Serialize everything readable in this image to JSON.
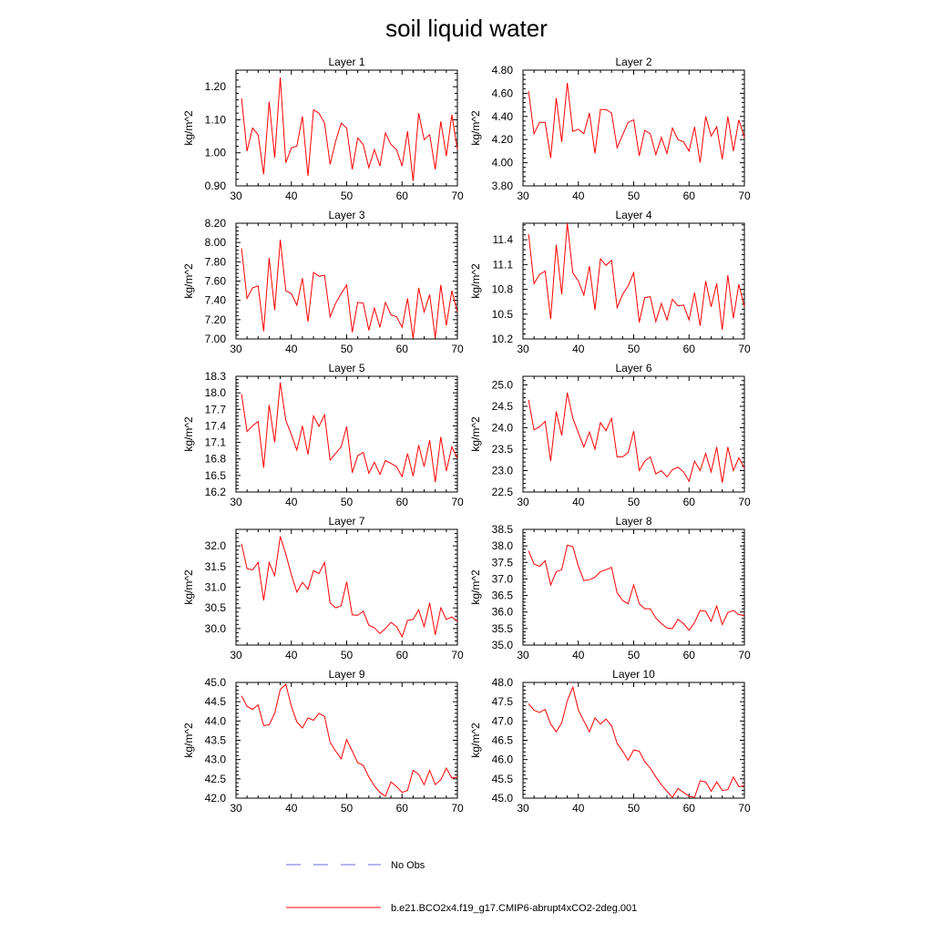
{
  "title": "soil liquid water",
  "legend": {
    "obs_label": "No Obs",
    "model_label": "b.e21.BCO2x4.f19_g17.CMIP6-abrupt4xCO2-2deg.001",
    "obs_color": "#6a6ad8",
    "model_color": "#ff0000"
  },
  "chart_data": [
    {
      "type": "line",
      "title": "Layer 1",
      "ylabel": "kg/m^2",
      "xlim": [
        30,
        70
      ],
      "ylim": [
        0.9,
        1.25
      ],
      "xticks": [
        "30",
        "40",
        "50",
        "60",
        "70"
      ],
      "yticks": [
        "0.90",
        "1.00",
        "1.10",
        "1.20"
      ],
      "x": [
        31,
        32,
        33,
        34,
        35,
        36,
        37,
        38,
        39,
        40,
        41,
        42,
        43,
        44,
        45,
        46,
        47,
        48,
        49,
        50,
        51,
        52,
        53,
        54,
        55,
        56,
        57,
        58,
        59,
        60,
        61,
        62,
        63,
        64,
        65,
        66,
        67,
        68,
        69,
        70
      ],
      "values": [
        1.165,
        1.005,
        1.075,
        1.055,
        0.935,
        1.155,
        0.985,
        1.228,
        0.97,
        1.015,
        1.02,
        1.11,
        0.93,
        1.13,
        1.12,
        1.09,
        0.965,
        1.035,
        1.09,
        1.075,
        0.95,
        1.045,
        1.025,
        0.955,
        1.01,
        0.96,
        1.06,
        1.025,
        1.01,
        0.96,
        1.065,
        0.915,
        1.12,
        1.04,
        1.055,
        0.95,
        1.095,
        0.99,
        1.115,
        1.01
      ]
    },
    {
      "type": "line",
      "title": "Layer 2",
      "ylabel": "kg/m^2",
      "xlim": [
        30,
        70
      ],
      "ylim": [
        3.8,
        4.8
      ],
      "xticks": [
        "30",
        "40",
        "50",
        "60",
        "70"
      ],
      "yticks": [
        "3.80",
        "4.00",
        "4.20",
        "4.40",
        "4.60",
        "4.80"
      ],
      "x": [
        31,
        32,
        33,
        34,
        35,
        36,
        37,
        38,
        39,
        40,
        41,
        42,
        43,
        44,
        45,
        46,
        47,
        48,
        49,
        50,
        51,
        52,
        53,
        54,
        55,
        56,
        57,
        58,
        59,
        60,
        61,
        62,
        63,
        64,
        65,
        66,
        67,
        68,
        69,
        70
      ],
      "values": [
        4.62,
        4.25,
        4.35,
        4.35,
        4.04,
        4.56,
        4.18,
        4.69,
        4.27,
        4.29,
        4.25,
        4.43,
        4.08,
        4.46,
        4.46,
        4.43,
        4.13,
        4.24,
        4.35,
        4.37,
        4.06,
        4.28,
        4.25,
        4.07,
        4.22,
        4.08,
        4.3,
        4.2,
        4.18,
        4.1,
        4.31,
        4.0,
        4.4,
        4.23,
        4.31,
        4.03,
        4.4,
        4.1,
        4.37,
        4.22
      ]
    },
    {
      "type": "line",
      "title": "Layer 3",
      "ylabel": "kg/m^2",
      "xlim": [
        30,
        70
      ],
      "ylim": [
        7.0,
        8.2
      ],
      "xticks": [
        "30",
        "40",
        "50",
        "60",
        "70"
      ],
      "yticks": [
        "7.00",
        "7.20",
        "7.40",
        "7.60",
        "7.80",
        "8.00",
        "8.20"
      ],
      "x": [
        31,
        32,
        33,
        34,
        35,
        36,
        37,
        38,
        39,
        40,
        41,
        42,
        43,
        44,
        45,
        46,
        47,
        48,
        49,
        50,
        51,
        52,
        53,
        54,
        55,
        56,
        57,
        58,
        59,
        60,
        61,
        62,
        63,
        64,
        65,
        66,
        67,
        68,
        69,
        70
      ],
      "values": [
        7.94,
        7.42,
        7.53,
        7.55,
        7.08,
        7.84,
        7.3,
        8.03,
        7.5,
        7.47,
        7.35,
        7.63,
        7.18,
        7.69,
        7.65,
        7.66,
        7.23,
        7.37,
        7.47,
        7.56,
        7.07,
        7.38,
        7.37,
        7.09,
        7.32,
        7.12,
        7.38,
        7.25,
        7.23,
        7.12,
        7.42,
        7.01,
        7.53,
        7.28,
        7.46,
        7.01,
        7.56,
        7.14,
        7.5,
        7.28
      ]
    },
    {
      "type": "line",
      "title": "Layer 4",
      "ylabel": "kg/m^2",
      "xlim": [
        30,
        70
      ],
      "ylim": [
        10.2,
        11.6
      ],
      "xticks": [
        "30",
        "40",
        "50",
        "60",
        "70"
      ],
      "yticks": [
        "10.2",
        "10.5",
        "10.8",
        "11.1",
        "11.4"
      ],
      "x": [
        31,
        32,
        33,
        34,
        35,
        36,
        37,
        38,
        39,
        40,
        41,
        42,
        43,
        44,
        45,
        46,
        47,
        48,
        49,
        50,
        51,
        52,
        53,
        54,
        55,
        56,
        57,
        58,
        59,
        60,
        61,
        62,
        63,
        64,
        65,
        66,
        67,
        68,
        69,
        70
      ],
      "values": [
        11.47,
        10.87,
        10.98,
        11.02,
        10.44,
        11.34,
        10.74,
        11.6,
        11.0,
        10.9,
        10.73,
        11.08,
        10.55,
        11.17,
        11.09,
        11.15,
        10.58,
        10.74,
        10.84,
        11.0,
        10.4,
        10.7,
        10.71,
        10.41,
        10.63,
        10.43,
        10.68,
        10.6,
        10.61,
        10.43,
        10.76,
        10.36,
        10.9,
        10.59,
        10.87,
        10.31,
        10.97,
        10.45,
        10.86,
        10.59
      ]
    },
    {
      "type": "line",
      "title": "Layer 5",
      "ylabel": "kg/m^2",
      "xlim": [
        30,
        70
      ],
      "ylim": [
        16.2,
        18.3
      ],
      "xticks": [
        "30",
        "40",
        "50",
        "60",
        "70"
      ],
      "yticks": [
        "16.2",
        "16.5",
        "16.8",
        "17.1",
        "17.4",
        "17.7",
        "18.0",
        "18.3"
      ],
      "x": [
        31,
        32,
        33,
        34,
        35,
        36,
        37,
        38,
        39,
        40,
        41,
        42,
        43,
        44,
        45,
        46,
        47,
        48,
        49,
        50,
        51,
        52,
        53,
        54,
        55,
        56,
        57,
        58,
        59,
        60,
        61,
        62,
        63,
        64,
        65,
        66,
        67,
        68,
        69,
        70
      ],
      "values": [
        17.98,
        17.3,
        17.4,
        17.48,
        16.64,
        17.78,
        17.1,
        18.19,
        17.5,
        17.24,
        16.96,
        17.4,
        16.88,
        17.58,
        17.39,
        17.6,
        16.78,
        16.9,
        17.02,
        17.39,
        16.55,
        16.86,
        16.92,
        16.54,
        16.74,
        16.52,
        16.77,
        16.72,
        16.66,
        16.48,
        16.9,
        16.49,
        17.05,
        16.66,
        17.14,
        16.38,
        17.2,
        16.58,
        17.02,
        16.81
      ]
    },
    {
      "type": "line",
      "title": "Layer 6",
      "ylabel": "kg/m^2",
      "xlim": [
        30,
        70
      ],
      "ylim": [
        22.5,
        25.2
      ],
      "xticks": [
        "30",
        "40",
        "50",
        "60",
        "70"
      ],
      "yticks": [
        "22.5",
        "23.0",
        "23.5",
        "24.0",
        "24.5",
        "25.0"
      ],
      "x": [
        31,
        32,
        33,
        34,
        35,
        36,
        37,
        38,
        39,
        40,
        41,
        42,
        43,
        44,
        45,
        46,
        47,
        48,
        49,
        50,
        51,
        52,
        53,
        54,
        55,
        56,
        57,
        58,
        59,
        60,
        61,
        62,
        63,
        64,
        65,
        66,
        67,
        68,
        69,
        70
      ],
      "values": [
        24.65,
        23.95,
        24.02,
        24.15,
        23.22,
        24.38,
        23.82,
        24.82,
        24.22,
        23.88,
        23.55,
        23.9,
        23.5,
        24.12,
        23.93,
        24.22,
        23.32,
        23.32,
        23.42,
        23.92,
        23.0,
        23.22,
        23.32,
        22.92,
        23.0,
        22.85,
        23.02,
        23.08,
        22.97,
        22.75,
        23.22,
        23.0,
        23.4,
        22.97,
        23.55,
        22.72,
        23.55,
        23.0,
        23.3,
        23.06
      ]
    },
    {
      "type": "line",
      "title": "Layer 7",
      "ylabel": "kg/m^2",
      "xlim": [
        30,
        70
      ],
      "ylim": [
        29.6,
        32.4
      ],
      "xticks": [
        "30",
        "40",
        "50",
        "60",
        "70"
      ],
      "yticks": [
        "30.0",
        "30.5",
        "31.0",
        "31.5",
        "32.0"
      ],
      "x": [
        31,
        32,
        33,
        34,
        35,
        36,
        37,
        38,
        39,
        40,
        41,
        42,
        43,
        44,
        45,
        46,
        47,
        48,
        49,
        50,
        51,
        52,
        53,
        54,
        55,
        56,
        57,
        58,
        59,
        60,
        61,
        62,
        63,
        64,
        65,
        66,
        67,
        68,
        69,
        70
      ],
      "values": [
        32.05,
        31.45,
        31.42,
        31.6,
        30.68,
        31.6,
        31.28,
        32.23,
        31.8,
        31.3,
        30.88,
        31.12,
        30.95,
        31.4,
        31.33,
        31.6,
        30.62,
        30.5,
        30.55,
        31.13,
        30.33,
        30.32,
        30.42,
        30.08,
        30.02,
        29.88,
        30.0,
        30.15,
        30.05,
        29.8,
        30.2,
        30.22,
        30.45,
        30.05,
        30.62,
        29.85,
        30.5,
        30.22,
        30.28,
        30.18
      ]
    },
    {
      "type": "line",
      "title": "Layer 8",
      "ylabel": "kg/m^2",
      "xlim": [
        30,
        70
      ],
      "ylim": [
        35.0,
        38.5
      ],
      "xticks": [
        "30",
        "40",
        "50",
        "60",
        "70"
      ],
      "yticks": [
        "35.0",
        "35.5",
        "36.0",
        "36.5",
        "37.0",
        "37.5",
        "38.0",
        "38.5"
      ],
      "x": [
        31,
        32,
        33,
        34,
        35,
        36,
        37,
        38,
        39,
        40,
        41,
        42,
        43,
        44,
        45,
        46,
        47,
        48,
        49,
        50,
        51,
        52,
        53,
        54,
        55,
        56,
        57,
        58,
        59,
        60,
        61,
        62,
        63,
        64,
        65,
        66,
        67,
        68,
        69,
        70
      ],
      "values": [
        37.85,
        37.45,
        37.38,
        37.55,
        36.82,
        37.22,
        37.28,
        38.02,
        37.98,
        37.38,
        36.95,
        36.98,
        37.05,
        37.22,
        37.28,
        37.35,
        36.58,
        36.35,
        36.25,
        36.82,
        36.25,
        36.1,
        36.1,
        35.82,
        35.65,
        35.52,
        35.5,
        35.78,
        35.65,
        35.45,
        35.68,
        36.05,
        36.02,
        35.72,
        36.18,
        35.62,
        35.98,
        36.05,
        35.92,
        35.9
      ]
    },
    {
      "type": "line",
      "title": "Layer 9",
      "ylabel": "kg/m^2",
      "xlim": [
        30,
        70
      ],
      "ylim": [
        42.0,
        45.0
      ],
      "xticks": [
        "30",
        "40",
        "50",
        "60",
        "70"
      ],
      "yticks": [
        "42.0",
        "42.5",
        "43.0",
        "43.5",
        "44.0",
        "44.5",
        "45.0"
      ],
      "x": [
        31,
        32,
        33,
        34,
        35,
        36,
        37,
        38,
        39,
        40,
        41,
        42,
        43,
        44,
        45,
        46,
        47,
        48,
        49,
        50,
        51,
        52,
        53,
        54,
        55,
        56,
        57,
        58,
        59,
        60,
        61,
        62,
        63,
        64,
        65,
        66,
        67,
        68,
        69,
        70
      ],
      "values": [
        44.65,
        44.38,
        44.3,
        44.42,
        43.88,
        43.9,
        44.2,
        44.82,
        44.95,
        44.38,
        43.98,
        43.82,
        44.08,
        44.02,
        44.2,
        44.12,
        43.45,
        43.22,
        43.02,
        43.52,
        43.22,
        42.92,
        42.85,
        42.55,
        42.32,
        42.15,
        42.05,
        42.42,
        42.3,
        42.15,
        42.2,
        42.72,
        42.62,
        42.35,
        42.72,
        42.35,
        42.48,
        42.78,
        42.52,
        42.55
      ]
    },
    {
      "type": "line",
      "title": "Layer 10",
      "ylabel": "kg/m^2",
      "xlim": [
        30,
        70
      ],
      "ylim": [
        45.0,
        48.0
      ],
      "xticks": [
        "30",
        "40",
        "50",
        "60",
        "70"
      ],
      "yticks": [
        "45.0",
        "45.5",
        "46.0",
        "46.5",
        "47.0",
        "47.5",
        "48.0"
      ],
      "x": [
        31,
        32,
        33,
        34,
        35,
        36,
        37,
        38,
        39,
        40,
        41,
        42,
        43,
        44,
        45,
        46,
        47,
        48,
        49,
        50,
        51,
        52,
        53,
        54,
        55,
        56,
        57,
        58,
        59,
        60,
        61,
        62,
        63,
        64,
        65,
        66,
        67,
        68,
        69,
        70
      ],
      "values": [
        47.45,
        47.28,
        47.22,
        47.3,
        46.92,
        46.72,
        46.95,
        47.52,
        47.88,
        47.28,
        47.0,
        46.72,
        47.08,
        46.92,
        47.05,
        46.88,
        46.42,
        46.22,
        45.98,
        46.25,
        46.22,
        45.95,
        45.78,
        45.55,
        45.35,
        45.18,
        45.02,
        45.25,
        45.15,
        45.05,
        45.02,
        45.45,
        45.42,
        45.18,
        45.42,
        45.2,
        45.22,
        45.55,
        45.3,
        45.32
      ]
    }
  ]
}
